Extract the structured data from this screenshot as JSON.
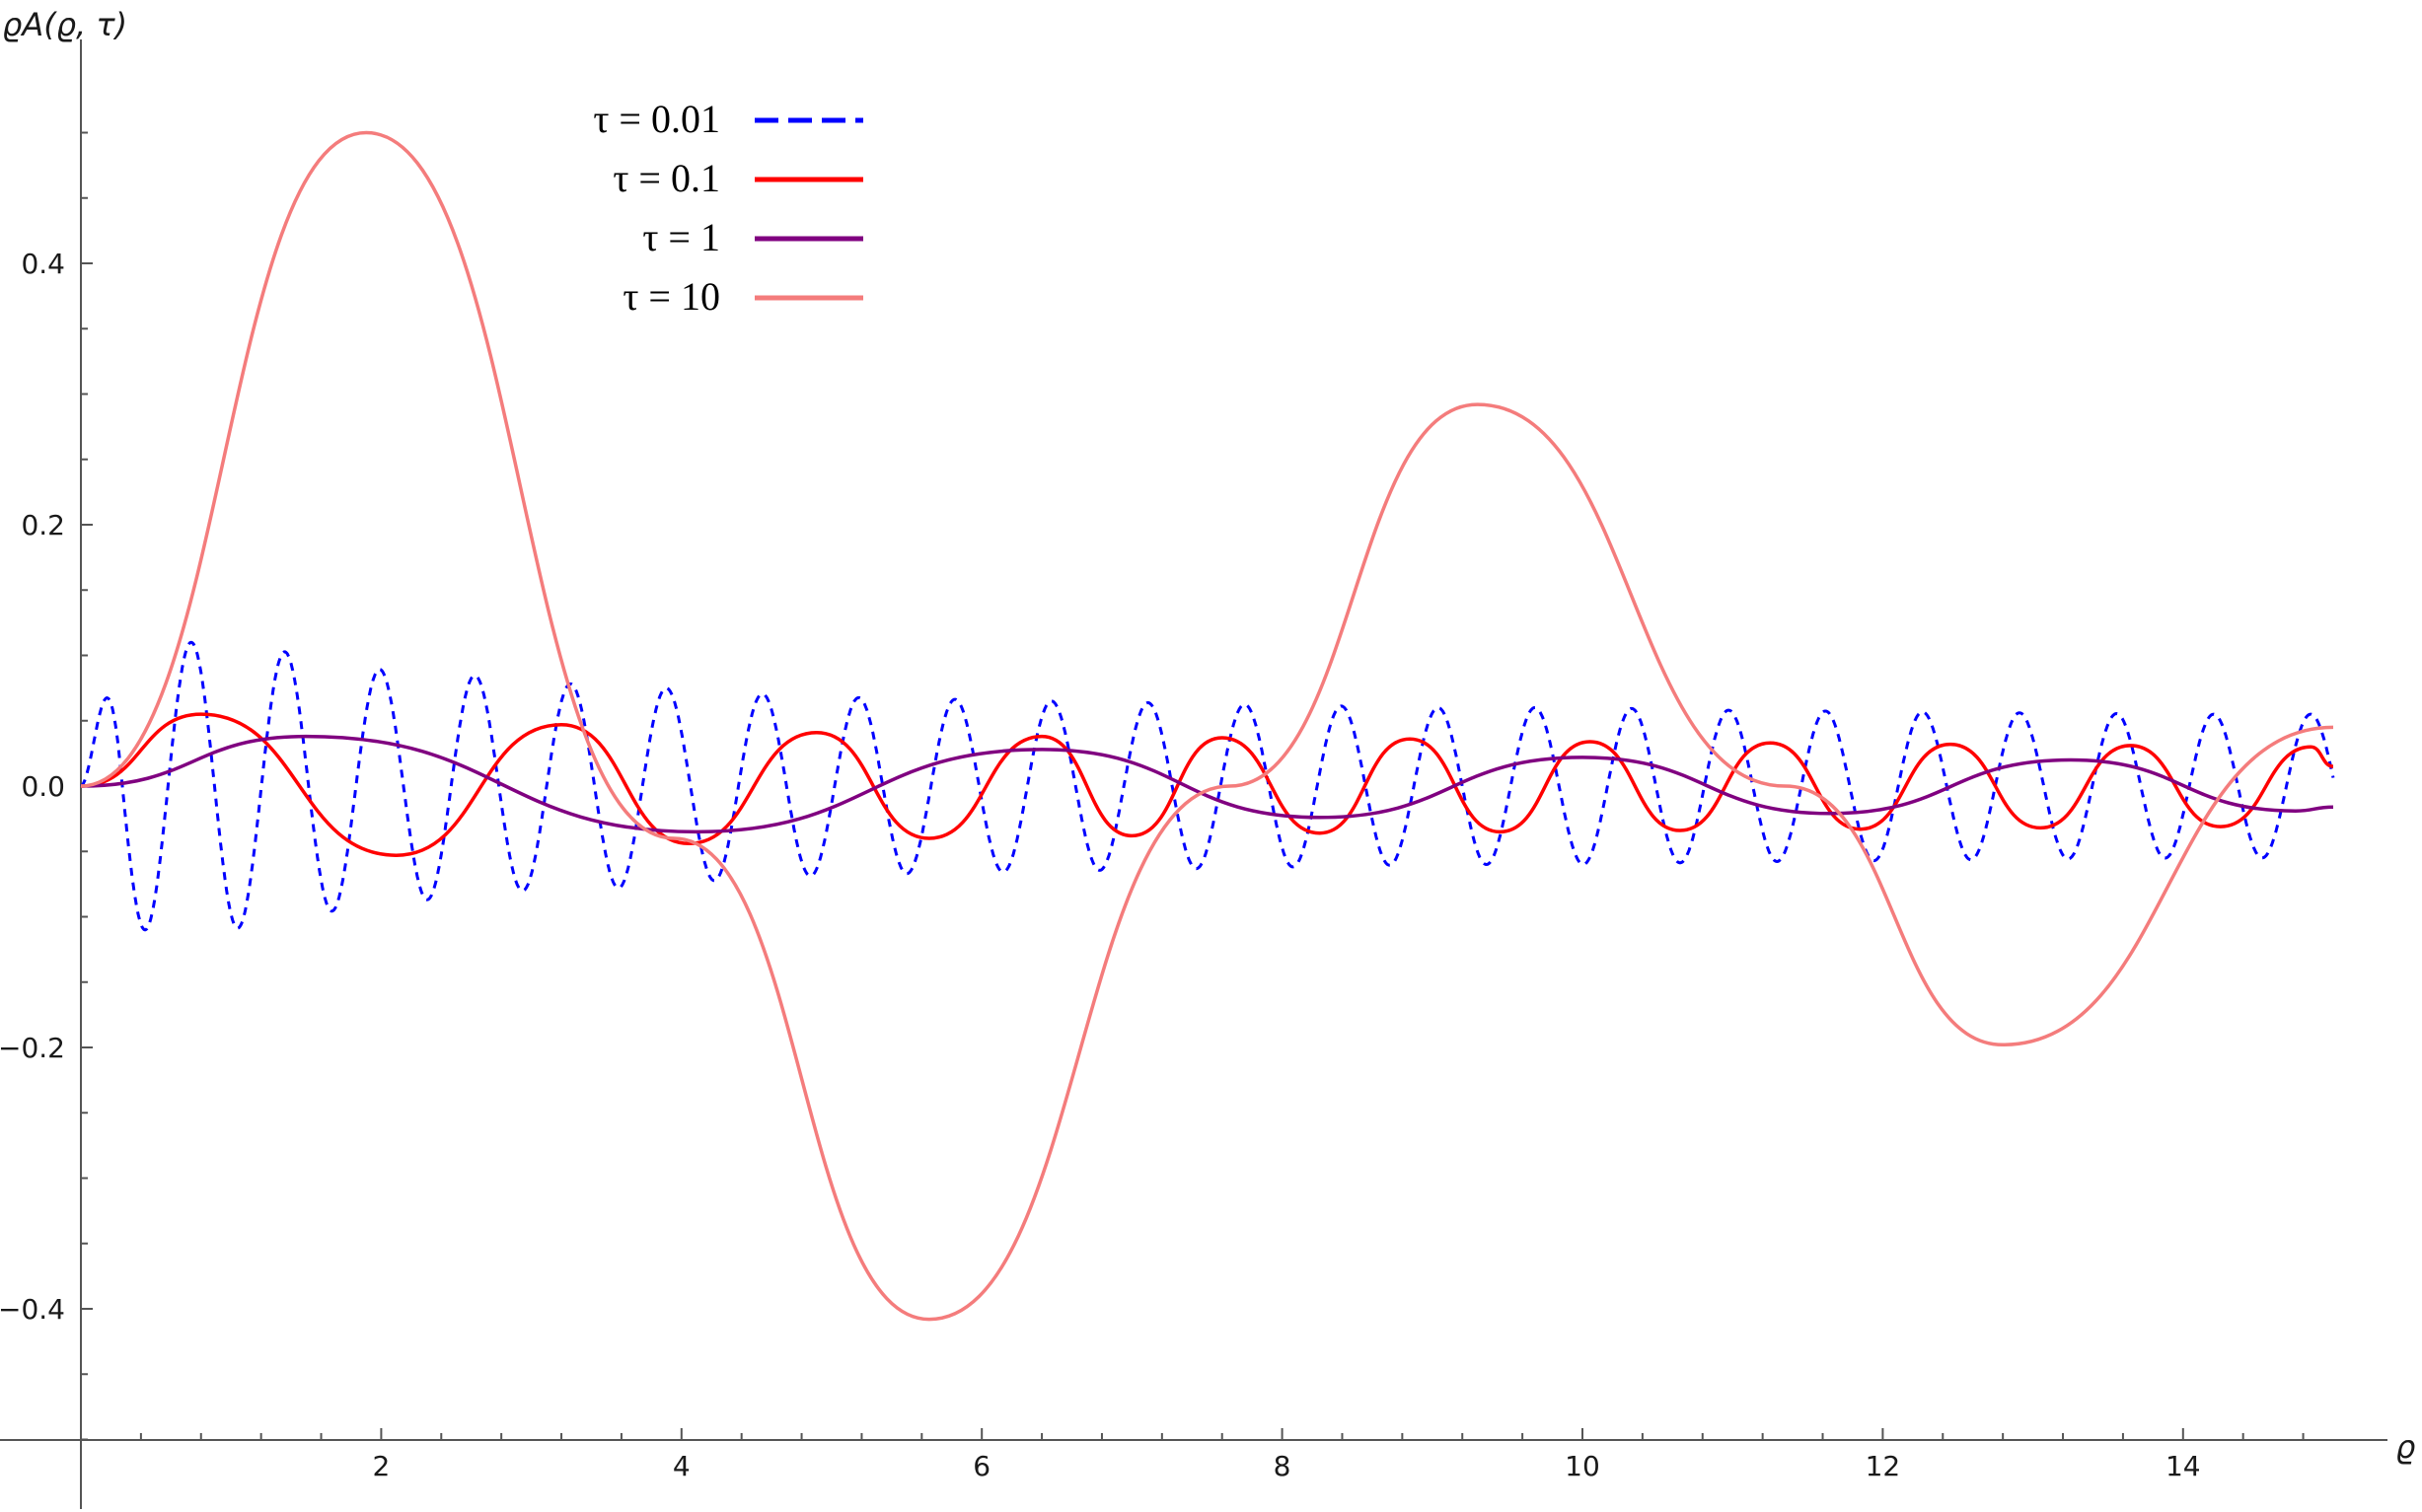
{
  "chart_data": {
    "type": "line",
    "xlabel": "ϱ",
    "ylabel": "ϱA(ϱ, τ)",
    "xlim": [
      0,
      15
    ],
    "ylim": [
      -0.5,
      0.5
    ],
    "x_ticks": [
      2,
      4,
      6,
      8,
      10,
      12,
      14
    ],
    "y_ticks": [
      -0.4,
      -0.2,
      0.0,
      0.2,
      0.4
    ],
    "y_tick_labels": [
      "−0.4",
      "−0.2",
      "0.0",
      "0.2",
      "0.4"
    ],
    "legend_position": "top-left",
    "grid": false,
    "series": [
      {
        "name": "τ = 0.01",
        "color": "#0000ff",
        "style": "dashed",
        "x": [
          0.0,
          0.32,
          0.98,
          1.5,
          1.9,
          2.3,
          2.6,
          2.95,
          3.3,
          3.6,
          3.9,
          4.1,
          5.0,
          6.0,
          7.0,
          8.0,
          9.0,
          10.0,
          11.0,
          12.0,
          13.0,
          14.0,
          15.0
        ],
        "y": [
          0.0,
          0.11,
          -0.11,
          0.1,
          -0.09,
          0.087,
          -0.085,
          0.08,
          -0.078,
          0.078,
          -0.075,
          0.073,
          0.068,
          0.066,
          0.064,
          0.062,
          0.06,
          0.06,
          0.058,
          0.057,
          0.056,
          0.055,
          -0.055
        ],
        "oscillation_period": 0.32
      },
      {
        "name": "τ = 0.1",
        "color": "#ff0000",
        "style": "solid",
        "x": [
          0.0,
          0.8,
          2.1,
          3.2,
          4.05,
          4.9,
          5.65,
          6.4,
          7.0,
          7.6,
          8.25,
          8.85,
          9.45,
          10.05,
          10.65,
          11.25,
          11.85,
          12.45,
          13.05,
          13.65,
          14.25,
          14.85,
          15.0
        ],
        "y": [
          0.0,
          0.055,
          -0.053,
          0.047,
          -0.044,
          0.041,
          -0.04,
          0.038,
          -0.038,
          0.037,
          -0.036,
          0.036,
          -0.035,
          0.034,
          -0.034,
          0.033,
          -0.033,
          0.032,
          -0.032,
          0.031,
          -0.031,
          0.03,
          0.015
        ]
      },
      {
        "name": "τ = 1",
        "color": "#800080",
        "style": "solid",
        "x": [
          0.0,
          1.5,
          4.1,
          6.4,
          8.25,
          10.0,
          11.65,
          13.25,
          14.75,
          15.0
        ],
        "y": [
          0.0,
          0.038,
          -0.035,
          0.028,
          -0.024,
          0.022,
          -0.021,
          0.02,
          -0.019,
          -0.016
        ]
      },
      {
        "name": "τ = 10",
        "color": "#f47c7c",
        "style": "solid",
        "x": [
          0.0,
          1.9,
          3.95,
          5.65,
          7.65,
          9.3,
          11.35,
          12.8,
          15.0
        ],
        "y": [
          0.0,
          0.5,
          -0.04,
          -0.408,
          0.0,
          0.292,
          0.0,
          -0.198,
          0.045
        ]
      }
    ]
  }
}
